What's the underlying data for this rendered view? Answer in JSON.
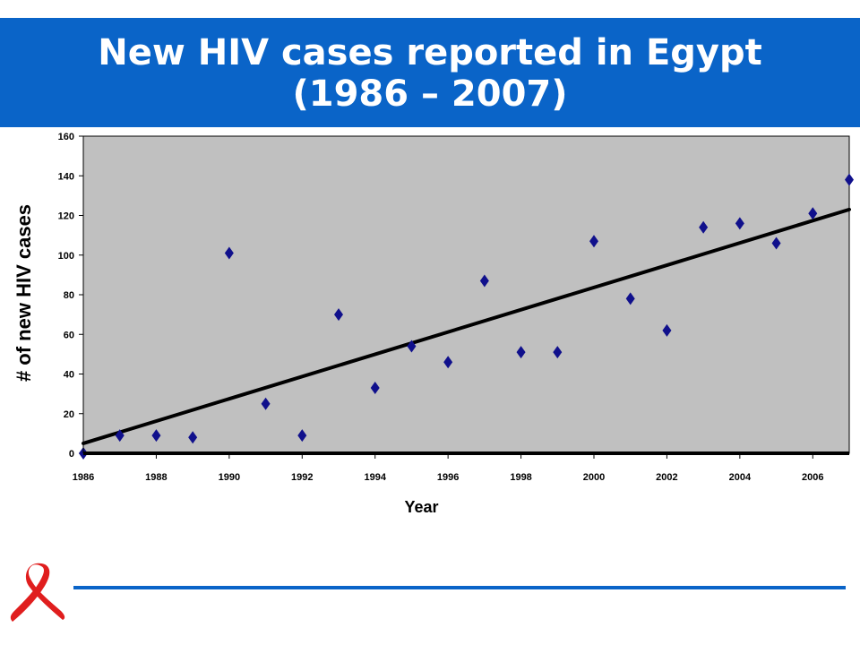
{
  "slide": {
    "title_line1": "New HIV cases reported in Egypt",
    "title_line2": "(1986 – 2007)"
  },
  "colors": {
    "banner": "#0a64c8",
    "plot_bg": "#c0c0c0",
    "marker": "#10108c",
    "trend": "#000000",
    "ribbon": "#e01e1e",
    "rule": "#0a64c8"
  },
  "chart_data": {
    "type": "scatter",
    "xlabel": "Year",
    "ylabel": "# of new HIV cases",
    "xlim": [
      1986,
      2007
    ],
    "ylim": [
      0,
      160
    ],
    "x_ticks": [
      1986,
      1988,
      1990,
      1992,
      1994,
      1996,
      1998,
      2000,
      2002,
      2004,
      2006
    ],
    "y_ticks": [
      0,
      20,
      40,
      60,
      80,
      100,
      120,
      140,
      160
    ],
    "grid": false,
    "series": [
      {
        "kind": "points",
        "x": [
          1986,
          1987,
          1988,
          1989,
          1990,
          1991,
          1992,
          1993,
          1994,
          1995,
          1996,
          1997,
          1998,
          1999,
          2000,
          2001,
          2002,
          2003,
          2004,
          2005,
          2006,
          2007
        ],
        "y": [
          0,
          9,
          9,
          8,
          101,
          25,
          9,
          70,
          33,
          54,
          46,
          87,
          51,
          51,
          107,
          78,
          62,
          114,
          116,
          106,
          121,
          138
        ]
      },
      {
        "kind": "trend",
        "x": [
          1986,
          2007
        ],
        "y": [
          5,
          123
        ]
      }
    ]
  }
}
